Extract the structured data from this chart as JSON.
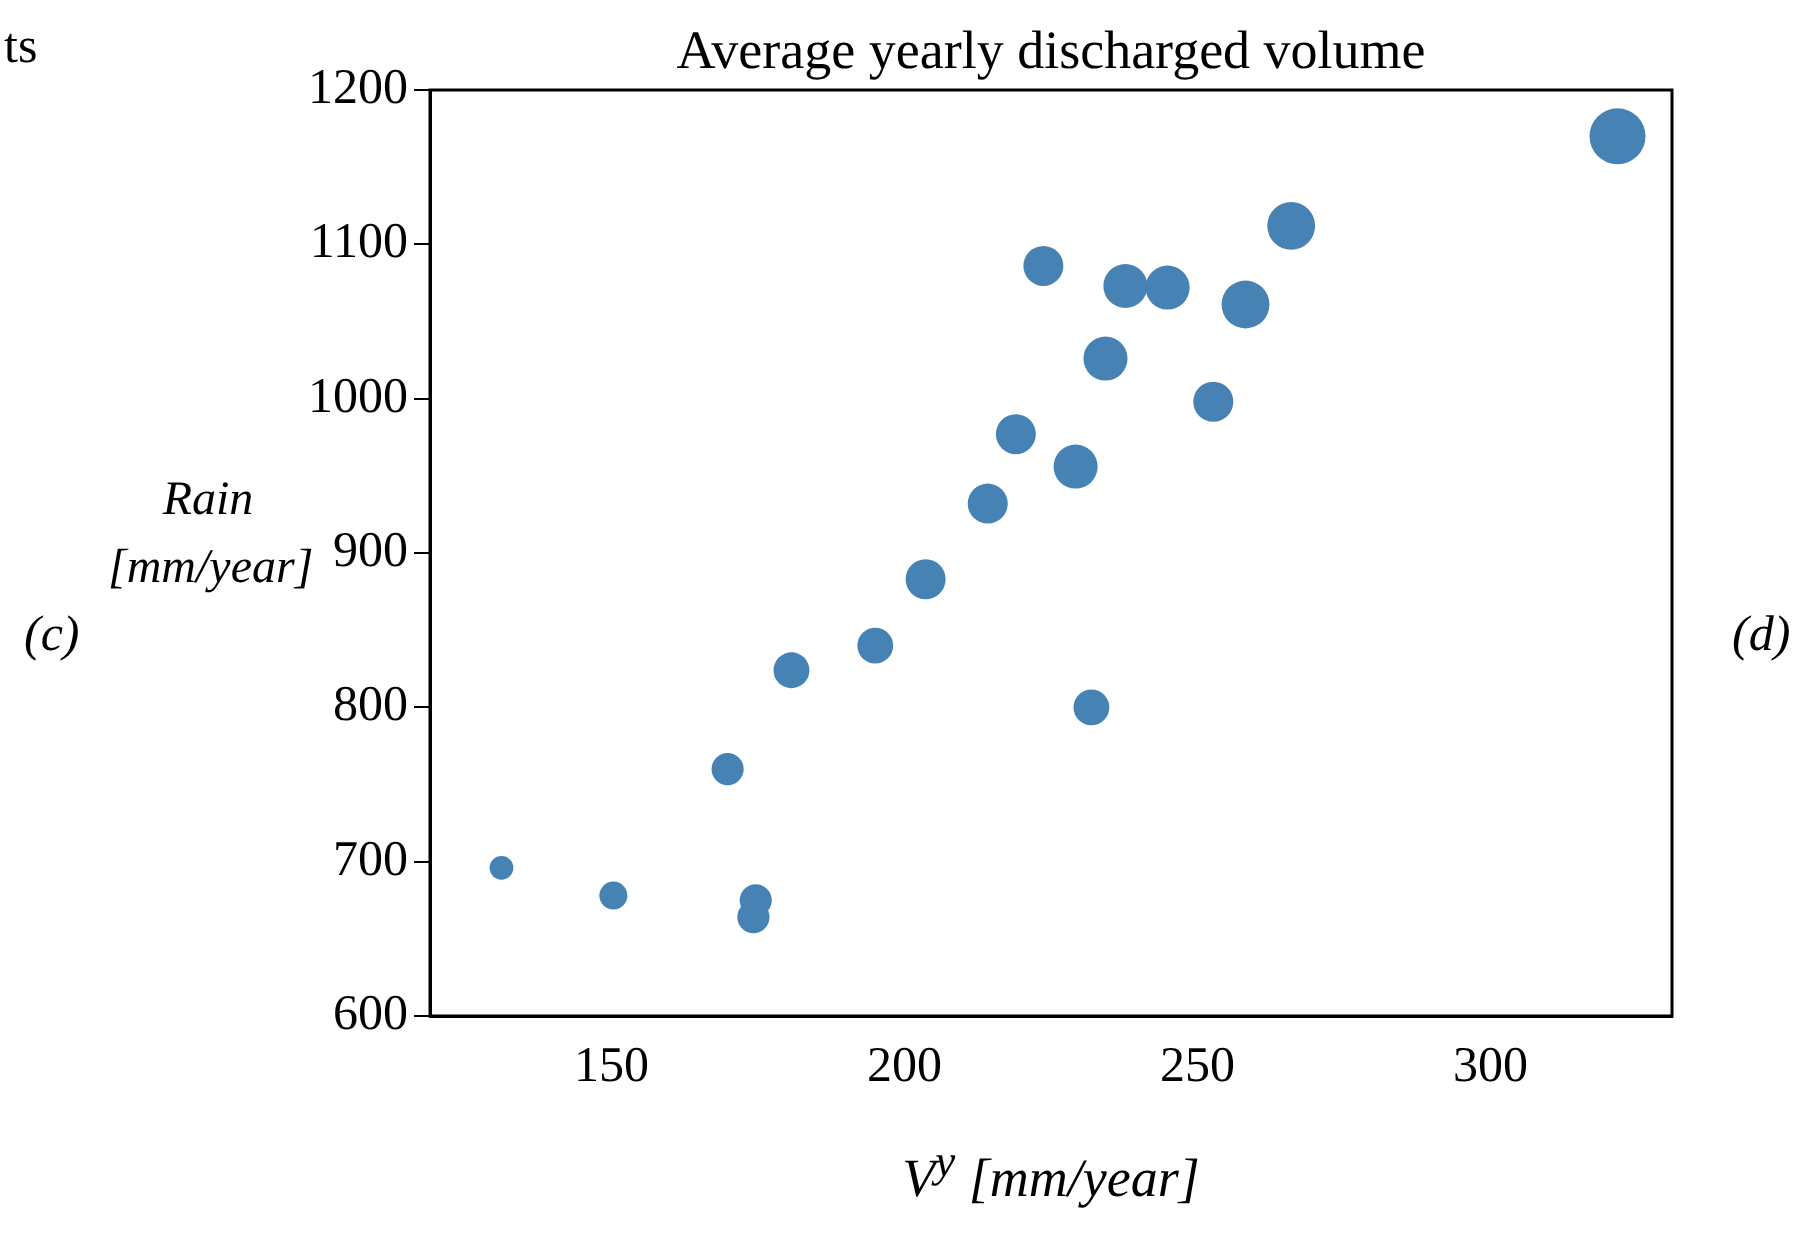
{
  "chart_data": {
    "type": "bubble",
    "title": "Average yearly discharged volume",
    "xlabel": "V$^{y}$ [mm/year]",
    "ylabel": "Rain [mm/year]",
    "annotations": [
      "ts",
      "(c)",
      "(d)"
    ],
    "x": [
      131.2,
      150.3,
      174.6,
      174.2,
      169.8,
      180.7,
      195,
      203.6,
      214.2,
      219,
      229.2,
      231.9,
      223.7,
      234.3,
      237.7,
      244.9,
      252.7,
      258.2,
      266,
      321.7
    ],
    "values": [
      696,
      678,
      675,
      664,
      760,
      824,
      840,
      883,
      932,
      977,
      956,
      800,
      1086,
      1026,
      1073,
      1072,
      998,
      1061,
      1112,
      1170
    ],
    "sizes": [
      0.18,
      0.25,
      0.33,
      0.33,
      0.33,
      0.41,
      0.41,
      0.51,
      0.51,
      0.51,
      0.62,
      0.41,
      0.51,
      0.62,
      0.62,
      0.62,
      0.51,
      0.73,
      0.73,
      1
    ],
    "color": "#4682b4",
    "marker": "circle",
    "xlim": [
      119,
      331
    ],
    "xticks": [
      150,
      200,
      250,
      300
    ],
    "ylim": [
      600,
      1200
    ],
    "yticks": [
      600,
      700,
      800,
      900,
      1000,
      1100,
      1200
    ],
    "grid": false,
    "legend": false
  }
}
